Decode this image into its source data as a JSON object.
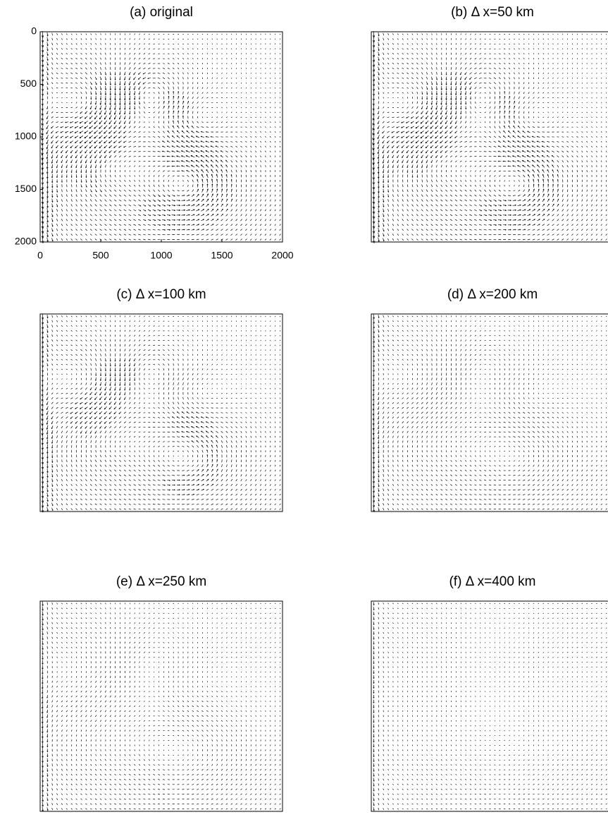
{
  "chart_data": [
    {
      "type": "quiver",
      "title": "(a) original",
      "xlim": [
        0,
        2000
      ],
      "ylim": [
        0,
        2000
      ],
      "y_inverted": true,
      "xticks": [
        0,
        500,
        1000,
        1500,
        2000
      ],
      "yticks": [
        0,
        500,
        1000,
        1500,
        2000
      ]
    },
    {
      "type": "quiver",
      "title": "(b) Δ x=50 km"
    },
    {
      "type": "quiver",
      "title": "(c) Δ x=100 km"
    },
    {
      "type": "quiver",
      "title": "(d) Δ x=200 km"
    },
    {
      "type": "quiver",
      "title": "(e) Δ x=250 km"
    },
    {
      "type": "quiver",
      "title": "(f) Δ x=400 km"
    }
  ]
}
